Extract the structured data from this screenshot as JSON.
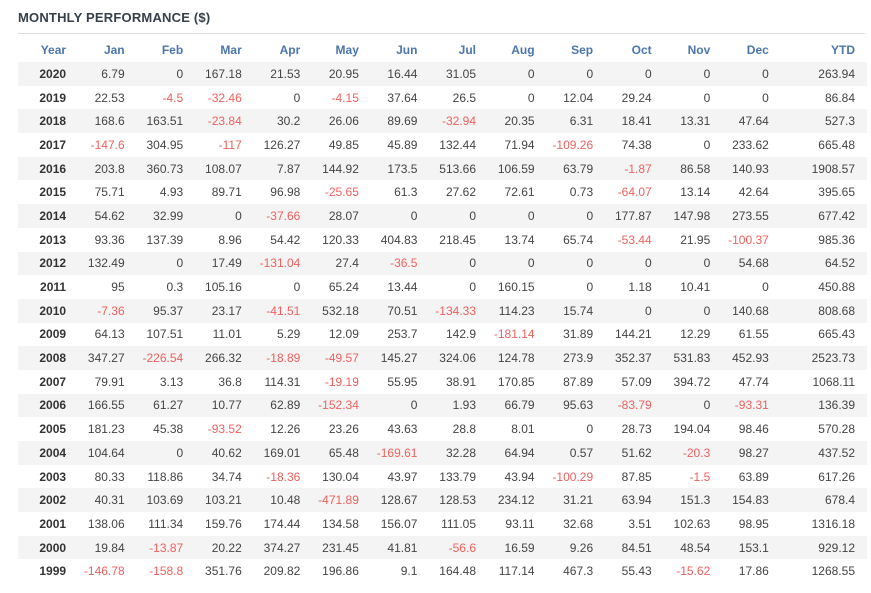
{
  "page": {
    "title": "MONTHLY PERFORMANCE ($)"
  },
  "colors": {
    "header_text": "#4a76ad",
    "negative_value": "#f0605d",
    "positive_value": "#444444",
    "year_text": "#333333",
    "title_text": "#36404a",
    "row_stripe": "#f4f4f4",
    "divider": "#dddddd"
  },
  "table": {
    "columns": [
      "Year",
      "Jan",
      "Feb",
      "Mar",
      "Apr",
      "May",
      "Jun",
      "Jul",
      "Aug",
      "Sep",
      "Oct",
      "Nov",
      "Dec",
      "YTD"
    ],
    "rows": [
      {
        "year": "2020",
        "values": [
          "6.79",
          "0",
          "167.18",
          "21.53",
          "20.95",
          "16.44",
          "31.05",
          "0",
          "0",
          "0",
          "0",
          "0",
          "263.94"
        ]
      },
      {
        "year": "2019",
        "values": [
          "22.53",
          "-4.5",
          "-32.46",
          "0",
          "-4.15",
          "37.64",
          "26.5",
          "0",
          "12.04",
          "29.24",
          "0",
          "0",
          "86.84"
        ]
      },
      {
        "year": "2018",
        "values": [
          "168.6",
          "163.51",
          "-23.84",
          "30.2",
          "26.06",
          "89.69",
          "-32.94",
          "20.35",
          "6.31",
          "18.41",
          "13.31",
          "47.64",
          "527.3"
        ]
      },
      {
        "year": "2017",
        "values": [
          "-147.6",
          "304.95",
          "-117",
          "126.27",
          "49.85",
          "45.89",
          "132.44",
          "71.94",
          "-109.26",
          "74.38",
          "0",
          "233.62",
          "665.48"
        ]
      },
      {
        "year": "2016",
        "values": [
          "203.8",
          "360.73",
          "108.07",
          "7.87",
          "144.92",
          "173.5",
          "513.66",
          "106.59",
          "63.79",
          "-1.87",
          "86.58",
          "140.93",
          "1908.57"
        ]
      },
      {
        "year": "2015",
        "values": [
          "75.71",
          "4.93",
          "89.71",
          "96.98",
          "-25.65",
          "61.3",
          "27.62",
          "72.61",
          "0.73",
          "-64.07",
          "13.14",
          "42.64",
          "395.65"
        ]
      },
      {
        "year": "2014",
        "values": [
          "54.62",
          "32.99",
          "0",
          "-37.66",
          "28.07",
          "0",
          "0",
          "0",
          "0",
          "177.87",
          "147.98",
          "273.55",
          "677.42"
        ]
      },
      {
        "year": "2013",
        "values": [
          "93.36",
          "137.39",
          "8.96",
          "54.42",
          "120.33",
          "404.83",
          "218.45",
          "13.74",
          "65.74",
          "-53.44",
          "21.95",
          "-100.37",
          "985.36"
        ]
      },
      {
        "year": "2012",
        "values": [
          "132.49",
          "0",
          "17.49",
          "-131.04",
          "27.4",
          "-36.5",
          "0",
          "0",
          "0",
          "0",
          "0",
          "54.68",
          "64.52"
        ]
      },
      {
        "year": "2011",
        "values": [
          "95",
          "0.3",
          "105.16",
          "0",
          "65.24",
          "13.44",
          "0",
          "160.15",
          "0",
          "1.18",
          "10.41",
          "0",
          "450.88"
        ]
      },
      {
        "year": "2010",
        "values": [
          "-7.36",
          "95.37",
          "23.17",
          "-41.51",
          "532.18",
          "70.51",
          "-134.33",
          "114.23",
          "15.74",
          "0",
          "0",
          "140.68",
          "808.68"
        ]
      },
      {
        "year": "2009",
        "values": [
          "64.13",
          "107.51",
          "11.01",
          "5.29",
          "12.09",
          "253.7",
          "142.9",
          "-181.14",
          "31.89",
          "144.21",
          "12.29",
          "61.55",
          "665.43"
        ]
      },
      {
        "year": "2008",
        "values": [
          "347.27",
          "-226.54",
          "266.32",
          "-18.89",
          "-49.57",
          "145.27",
          "324.06",
          "124.78",
          "273.9",
          "352.37",
          "531.83",
          "452.93",
          "2523.73"
        ]
      },
      {
        "year": "2007",
        "values": [
          "79.91",
          "3.13",
          "36.8",
          "114.31",
          "-19.19",
          "55.95",
          "38.91",
          "170.85",
          "87.89",
          "57.09",
          "394.72",
          "47.74",
          "1068.11"
        ]
      },
      {
        "year": "2006",
        "values": [
          "166.55",
          "61.27",
          "10.77",
          "62.89",
          "-152.34",
          "0",
          "1.93",
          "66.79",
          "95.63",
          "-83.79",
          "0",
          "-93.31",
          "136.39"
        ]
      },
      {
        "year": "2005",
        "values": [
          "181.23",
          "45.38",
          "-93.52",
          "12.26",
          "23.26",
          "43.63",
          "28.8",
          "8.01",
          "0",
          "28.73",
          "194.04",
          "98.46",
          "570.28"
        ]
      },
      {
        "year": "2004",
        "values": [
          "104.64",
          "0",
          "40.62",
          "169.01",
          "65.48",
          "-169.61",
          "32.28",
          "64.94",
          "0.57",
          "51.62",
          "-20.3",
          "98.27",
          "437.52"
        ]
      },
      {
        "year": "2003",
        "values": [
          "80.33",
          "118.86",
          "34.74",
          "-18.36",
          "130.04",
          "43.97",
          "133.79",
          "43.94",
          "-100.29",
          "87.85",
          "-1.5",
          "63.89",
          "617.26"
        ]
      },
      {
        "year": "2002",
        "values": [
          "40.31",
          "103.69",
          "103.21",
          "10.48",
          "-471.89",
          "128.67",
          "128.53",
          "234.12",
          "31.21",
          "63.94",
          "151.3",
          "154.83",
          "678.4"
        ]
      },
      {
        "year": "2001",
        "values": [
          "138.06",
          "111.34",
          "159.76",
          "174.44",
          "134.58",
          "156.07",
          "111.05",
          "93.11",
          "32.68",
          "3.51",
          "102.63",
          "98.95",
          "1316.18"
        ]
      },
      {
        "year": "2000",
        "values": [
          "19.84",
          "-13.87",
          "20.22",
          "374.27",
          "231.45",
          "41.81",
          "-56.6",
          "16.59",
          "9.26",
          "84.51",
          "48.54",
          "153.1",
          "929.12"
        ]
      },
      {
        "year": "1999",
        "values": [
          "-146.78",
          "-158.8",
          "351.76",
          "209.82",
          "196.86",
          "9.1",
          "164.48",
          "117.14",
          "467.3",
          "55.43",
          "-15.62",
          "17.86",
          "1268.55"
        ]
      }
    ]
  }
}
